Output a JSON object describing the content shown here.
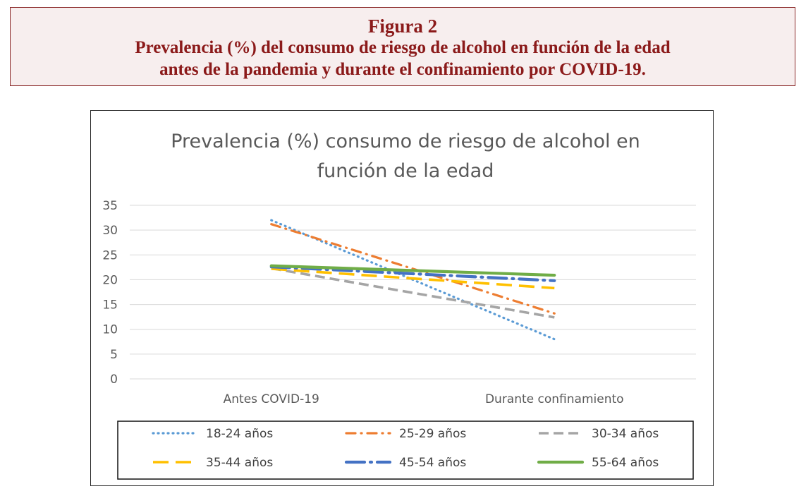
{
  "figure": {
    "number_label": "Figura 2",
    "caption_line1": "Prevalencia (%) del consumo de riesgo de alcohol en función de la edad",
    "caption_line2": "antes de la pandemia y durante el confinamiento por COVID-19."
  },
  "chart_data": {
    "type": "line",
    "title_line1": "Prevalencia (%) consumo de riesgo de alcohol en",
    "title_line2": "función de la edad",
    "categories": [
      "Antes COVID-19",
      "Durante confinamiento"
    ],
    "ylim": [
      0,
      35
    ],
    "yticks": [
      "0",
      "5",
      "10",
      "15",
      "20",
      "25",
      "30",
      "35"
    ],
    "grid": true,
    "legend_position": "bottom",
    "series": [
      {
        "name": "18-24 años",
        "values": [
          32.0,
          8.0
        ],
        "color": "#5b9bd5",
        "style": "dotted"
      },
      {
        "name": "25-29 años",
        "values": [
          31.2,
          13.2
        ],
        "color": "#ed7d31",
        "style": "dash-dot"
      },
      {
        "name": "30-34 años",
        "values": [
          22.3,
          12.4
        ],
        "color": "#a5a5a5",
        "style": "dashed"
      },
      {
        "name": "35-44 años",
        "values": [
          22.2,
          18.3
        ],
        "color": "#ffc000",
        "style": "long-dash"
      },
      {
        "name": "45-54 años",
        "values": [
          22.6,
          19.8
        ],
        "color": "#4472c4",
        "style": "long-dash-dot"
      },
      {
        "name": "55-64 años",
        "values": [
          22.8,
          20.9
        ],
        "color": "#70ad47",
        "style": "solid"
      }
    ]
  }
}
